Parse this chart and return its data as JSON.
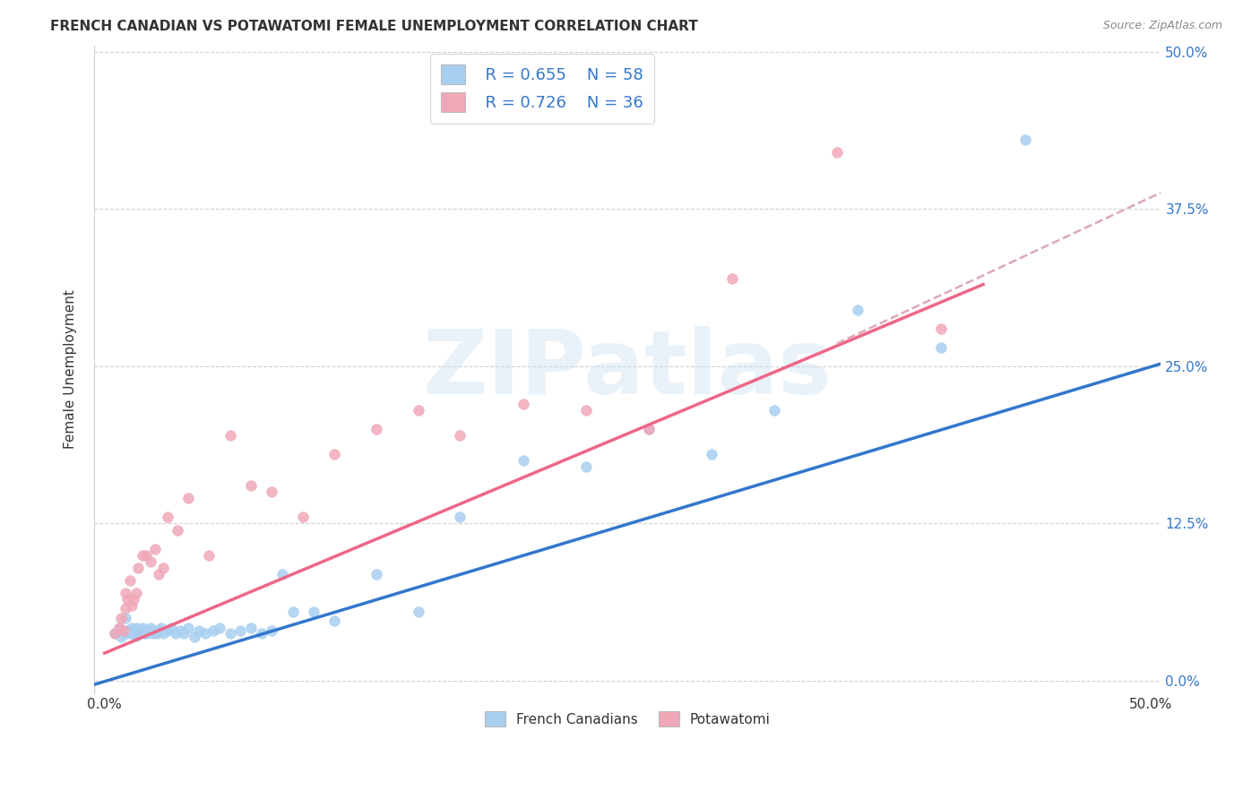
{
  "title": "FRENCH CANADIAN VS POTAWATOMI FEMALE UNEMPLOYMENT CORRELATION CHART",
  "source": "Source: ZipAtlas.com",
  "ylabel": "Female Unemployment",
  "ytick_labels": [
    "0.0%",
    "12.5%",
    "25.0%",
    "37.5%",
    "50.0%"
  ],
  "xtick_labels": [
    "0.0%",
    "",
    "",
    "",
    "50.0%"
  ],
  "tick_vals": [
    0.0,
    0.125,
    0.25,
    0.375,
    0.5
  ],
  "xlim": [
    -0.005,
    0.505
  ],
  "ylim": [
    -0.01,
    0.505
  ],
  "blue_scatter_color": "#A8CFF0",
  "pink_scatter_color": "#F0A8B8",
  "blue_line_color": "#3377CC",
  "pink_line_color": "#EE6688",
  "dashed_line_color": "#DDA8B8",
  "watermark": "ZIPatlas",
  "legend_R_blue": "R = 0.655",
  "legend_N_blue": "N = 58",
  "legend_R_pink": "R = 0.726",
  "legend_N_pink": "N = 36",
  "blue_scatter_x": [
    0.005,
    0.007,
    0.008,
    0.009,
    0.01,
    0.01,
    0.011,
    0.012,
    0.013,
    0.014,
    0.015,
    0.015,
    0.016,
    0.017,
    0.018,
    0.018,
    0.019,
    0.02,
    0.02,
    0.021,
    0.022,
    0.023,
    0.024,
    0.025,
    0.026,
    0.027,
    0.028,
    0.03,
    0.032,
    0.034,
    0.036,
    0.038,
    0.04,
    0.043,
    0.045,
    0.048,
    0.052,
    0.055,
    0.06,
    0.065,
    0.07,
    0.075,
    0.08,
    0.085,
    0.09,
    0.1,
    0.11,
    0.13,
    0.15,
    0.17,
    0.2,
    0.23,
    0.26,
    0.29,
    0.32,
    0.36,
    0.4,
    0.44
  ],
  "blue_scatter_y": [
    0.038,
    0.042,
    0.035,
    0.04,
    0.038,
    0.05,
    0.04,
    0.038,
    0.042,
    0.038,
    0.042,
    0.036,
    0.04,
    0.038,
    0.04,
    0.042,
    0.038,
    0.04,
    0.038,
    0.04,
    0.042,
    0.038,
    0.04,
    0.038,
    0.04,
    0.042,
    0.038,
    0.04,
    0.042,
    0.038,
    0.04,
    0.038,
    0.042,
    0.035,
    0.04,
    0.038,
    0.04,
    0.042,
    0.038,
    0.04,
    0.042,
    0.038,
    0.04,
    0.085,
    0.055,
    0.055,
    0.048,
    0.085,
    0.055,
    0.13,
    0.175,
    0.17,
    0.2,
    0.18,
    0.215,
    0.295,
    0.265,
    0.43
  ],
  "pink_scatter_x": [
    0.005,
    0.007,
    0.008,
    0.009,
    0.01,
    0.01,
    0.011,
    0.012,
    0.013,
    0.014,
    0.015,
    0.016,
    0.018,
    0.02,
    0.022,
    0.024,
    0.026,
    0.028,
    0.03,
    0.035,
    0.04,
    0.05,
    0.06,
    0.07,
    0.08,
    0.095,
    0.11,
    0.13,
    0.15,
    0.17,
    0.2,
    0.23,
    0.26,
    0.3,
    0.35,
    0.4
  ],
  "pink_scatter_y": [
    0.038,
    0.042,
    0.05,
    0.04,
    0.058,
    0.07,
    0.065,
    0.08,
    0.06,
    0.065,
    0.07,
    0.09,
    0.1,
    0.1,
    0.095,
    0.105,
    0.085,
    0.09,
    0.13,
    0.12,
    0.145,
    0.1,
    0.195,
    0.155,
    0.15,
    0.13,
    0.18,
    0.2,
    0.215,
    0.195,
    0.22,
    0.215,
    0.2,
    0.32,
    0.42,
    0.28
  ],
  "blue_line_x": [
    -0.005,
    0.505
  ],
  "blue_line_y": [
    -0.003,
    0.252
  ],
  "pink_line_x": [
    0.0,
    0.42
  ],
  "pink_line_y": [
    0.022,
    0.315
  ],
  "dash_line_x": [
    0.35,
    0.505
  ],
  "dash_line_y": [
    0.268,
    0.388
  ],
  "grid_color": "#CCCCCC",
  "background_color": "#FFFFFF",
  "text_color": "#333333",
  "blue_label_color": "#3377CC",
  "source_color": "#888888"
}
